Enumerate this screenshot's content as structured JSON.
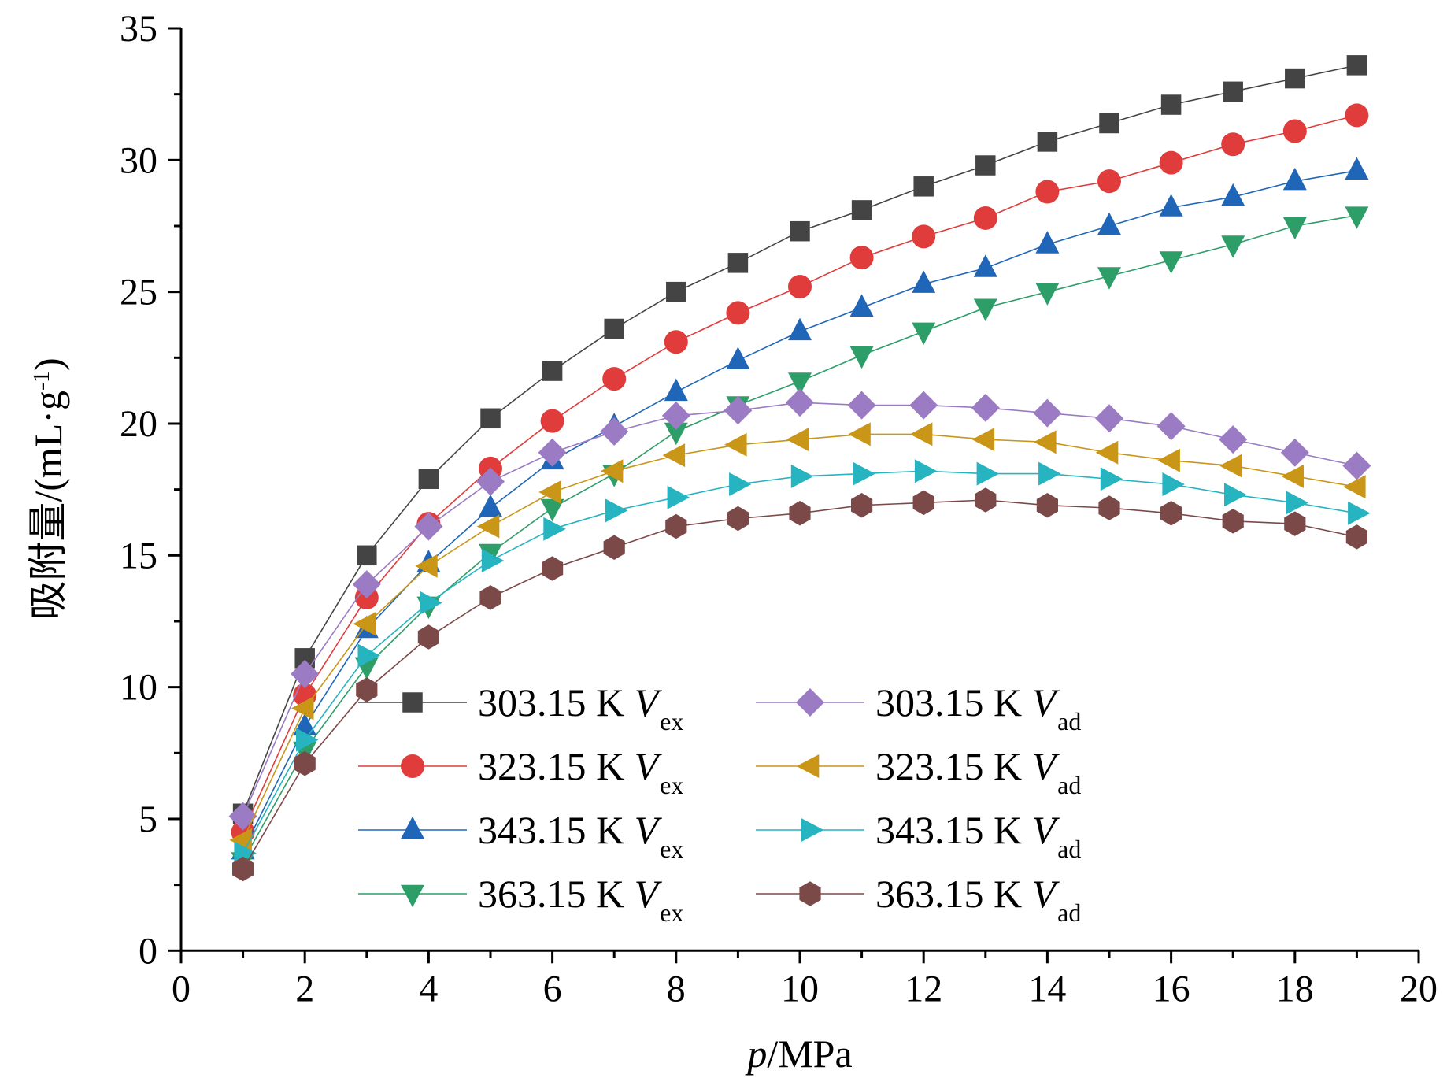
{
  "chart_data": {
    "type": "line",
    "title": "",
    "xlabel": {
      "italic": "p",
      "rest": "/MPa"
    },
    "ylabel": "吸附量/(mL·g-1)",
    "xlim": [
      0,
      20
    ],
    "ylim": [
      0,
      35
    ],
    "xticks": [
      0,
      2,
      4,
      6,
      8,
      10,
      12,
      14,
      16,
      18,
      20
    ],
    "yticks": [
      0,
      5,
      10,
      15,
      20,
      25,
      30,
      35
    ],
    "grid": false,
    "legend_position": "bottom-center, two columns",
    "x": [
      1,
      2,
      3,
      4,
      5,
      6,
      7,
      8,
      9,
      10,
      11,
      12,
      13,
      14,
      15,
      16,
      17,
      18,
      19
    ],
    "series": [
      {
        "name": "303.15 K V",
        "sub": "ex",
        "marker": "square",
        "color": "#444444",
        "values": [
          5.2,
          11.1,
          15.0,
          17.9,
          20.2,
          22.0,
          23.6,
          25.0,
          26.1,
          27.3,
          28.1,
          29.0,
          29.8,
          30.7,
          31.4,
          32.1,
          32.6,
          33.1,
          33.6
        ]
      },
      {
        "name": "323.15 K V",
        "sub": "ex",
        "marker": "circle",
        "color": "#e03c3c",
        "values": [
          4.5,
          9.7,
          13.4,
          16.2,
          18.3,
          20.1,
          21.7,
          23.1,
          24.2,
          25.2,
          26.3,
          27.1,
          27.8,
          28.8,
          29.2,
          29.9,
          30.6,
          31.1,
          31.7
        ]
      },
      {
        "name": "343.15 K V",
        "sub": "ex",
        "marker": "triangle-up",
        "color": "#2066b8",
        "values": [
          3.8,
          8.5,
          12.2,
          14.7,
          16.8,
          18.6,
          19.9,
          21.2,
          22.4,
          23.5,
          24.4,
          25.3,
          25.9,
          26.8,
          27.5,
          28.2,
          28.6,
          29.2,
          29.6
        ]
      },
      {
        "name": "363.15 K V",
        "sub": "ex",
        "marker": "triangle-down",
        "color": "#2e9e68",
        "values": [
          3.4,
          7.6,
          10.8,
          13.1,
          15.1,
          16.8,
          18.1,
          19.7,
          20.7,
          21.6,
          22.6,
          23.5,
          24.4,
          25.0,
          25.6,
          26.2,
          26.8,
          27.5,
          27.9
        ]
      },
      {
        "name": "303.15 K V",
        "sub": "ad",
        "marker": "diamond",
        "color": "#9b7bc4",
        "values": [
          5.1,
          10.5,
          13.9,
          16.1,
          17.8,
          18.9,
          19.7,
          20.3,
          20.5,
          20.8,
          20.7,
          20.7,
          20.6,
          20.4,
          20.2,
          19.9,
          19.4,
          18.9,
          18.4
        ]
      },
      {
        "name": "323.15 K V",
        "sub": "ad",
        "marker": "triangle-left",
        "color": "#c99617",
        "values": [
          4.2,
          9.2,
          12.4,
          14.6,
          16.1,
          17.4,
          18.2,
          18.8,
          19.2,
          19.4,
          19.6,
          19.6,
          19.4,
          19.3,
          18.9,
          18.6,
          18.4,
          18.0,
          17.6
        ]
      },
      {
        "name": "343.15 K V",
        "sub": "ad",
        "marker": "triangle-right",
        "color": "#26b4c0",
        "values": [
          3.7,
          8.0,
          11.2,
          13.2,
          14.8,
          16.0,
          16.7,
          17.2,
          17.7,
          18.0,
          18.1,
          18.2,
          18.1,
          18.1,
          17.9,
          17.7,
          17.3,
          17.0,
          16.6
        ]
      },
      {
        "name": "363.15 K V",
        "sub": "ad",
        "marker": "hexagon",
        "color": "#7b4a48",
        "values": [
          3.1,
          7.1,
          9.9,
          11.9,
          13.4,
          14.5,
          15.3,
          16.1,
          16.4,
          16.6,
          16.9,
          17.0,
          17.1,
          16.9,
          16.8,
          16.6,
          16.3,
          16.2,
          15.7
        ]
      }
    ]
  }
}
